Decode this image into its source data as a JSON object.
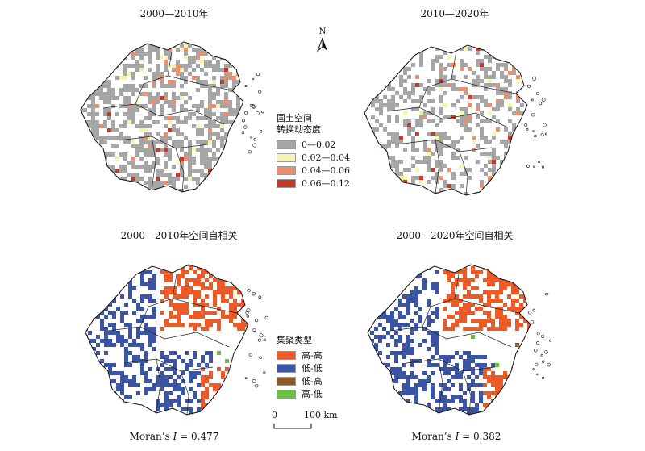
{
  "titles": {
    "top_left": "2000—2010年",
    "top_right": "2010—2020年",
    "bottom_left": "2000—2010年空间自相关",
    "bottom_right": "2000—2020年空间自相关"
  },
  "north_label": "N",
  "legend_top": {
    "title_line1": "国土空间",
    "title_line2": "转换动态度",
    "items": [
      {
        "label": "0—0.02",
        "color": "#a6a6a6"
      },
      {
        "label": "0.02—0.04",
        "color": "#f7f3b2"
      },
      {
        "label": "0.04—0.06",
        "color": "#ec8f6c"
      },
      {
        "label": "0.06—0.12",
        "color": "#c43a2c"
      }
    ]
  },
  "legend_bottom": {
    "title": "集聚类型",
    "items": [
      {
        "label": "高-高",
        "color": "#ec5a28"
      },
      {
        "label": "低-低",
        "color": "#3b54a4"
      },
      {
        "label": "低-高",
        "color": "#8b5a2b"
      },
      {
        "label": "高-低",
        "color": "#6cbf3c"
      }
    ]
  },
  "scale": {
    "zero": "0",
    "end": "100 km"
  },
  "moran": {
    "left_prefix": "Moran’s ",
    "left_symbol": "I",
    "left_value": " = 0.477",
    "right_prefix": "Moran’s ",
    "right_symbol": "I",
    "right_value": " = 0.382"
  }
}
